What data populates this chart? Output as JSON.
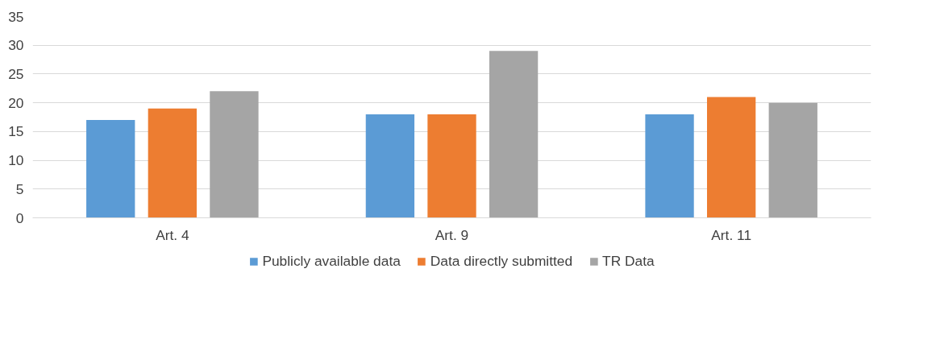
{
  "chart_data": {
    "type": "bar",
    "categories": [
      "Art. 4",
      "Art. 9",
      "Art. 11"
    ],
    "series": [
      {
        "name": "Publicly available data",
        "color": "#5b9bd5",
        "values": [
          17,
          18,
          18
        ]
      },
      {
        "name": "Data directly submitted",
        "color": "#ed7d31",
        "values": [
          19,
          18,
          21
        ]
      },
      {
        "name": "TR Data",
        "color": "#a5a5a5",
        "values": [
          22,
          29,
          20
        ]
      }
    ],
    "ylim": [
      0,
      35
    ],
    "yticks": [
      0,
      5,
      10,
      15,
      20,
      25,
      30,
      35
    ],
    "grid": "y",
    "legend": "bottom"
  }
}
